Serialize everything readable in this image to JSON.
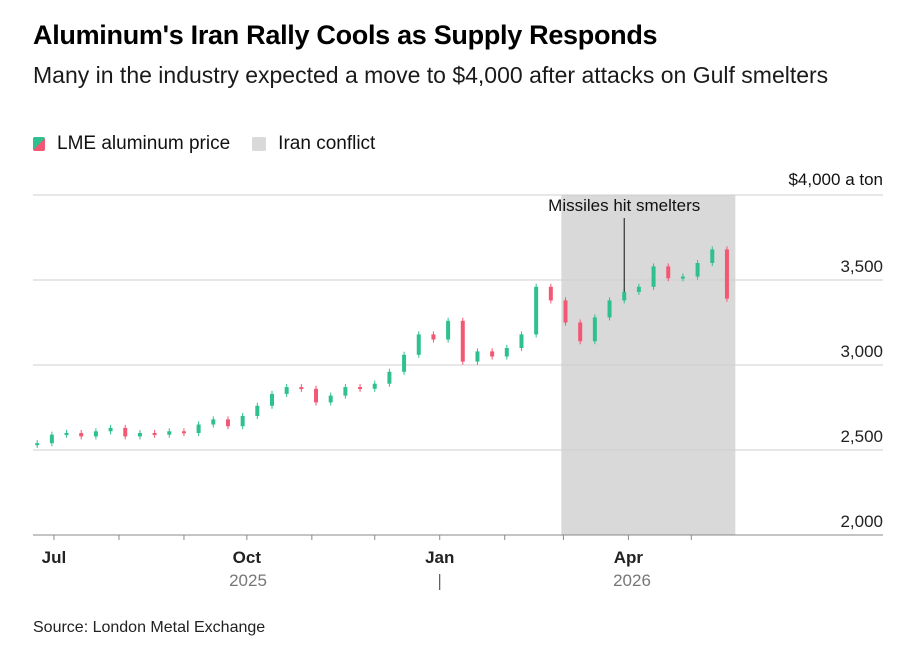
{
  "title": "Aluminum's Iran Rally Cools as Supply Responds",
  "subtitle": "Many in the industry expected a move to $4,000 after attacks on Gulf smelters",
  "legend": {
    "price_label": "LME aluminum price",
    "conflict_label": "Iran conflict"
  },
  "source": "Source: London Metal Exchange",
  "colors": {
    "up": "#2fc08f",
    "down": "#f25873",
    "shade": "#d9d9d9",
    "grid": "#cfcfcf",
    "axis": "#888888"
  },
  "chart_data": {
    "type": "line",
    "y_unit_label": "$4,000 a ton",
    "yticks": [
      "3,500",
      "3,000",
      "2,500",
      "2,000"
    ],
    "ytick_values": [
      3500,
      3000,
      2500,
      2000
    ],
    "ylim": [
      2000,
      4000
    ],
    "xticks": [
      "Jul",
      "Oct",
      "Jan",
      "Apr"
    ],
    "year_labels": [
      "2025",
      "2026"
    ],
    "shaded_region": {
      "label": "Iran conflict",
      "start": "2026-02-28",
      "end": "2026-05-22"
    },
    "annotation": {
      "text": "Missiles hit smelters",
      "date": "2026-03-30",
      "value": 3430
    },
    "series": [
      {
        "name": "LME aluminum price",
        "x": [
          "2025-06-23",
          "2025-06-30",
          "2025-07-07",
          "2025-07-14",
          "2025-07-21",
          "2025-07-28",
          "2025-08-04",
          "2025-08-11",
          "2025-08-18",
          "2025-08-25",
          "2025-09-01",
          "2025-09-08",
          "2025-09-15",
          "2025-09-22",
          "2025-09-29",
          "2025-10-06",
          "2025-10-13",
          "2025-10-20",
          "2025-10-27",
          "2025-11-03",
          "2025-11-10",
          "2025-11-17",
          "2025-11-24",
          "2025-12-01",
          "2025-12-08",
          "2025-12-15",
          "2025-12-22",
          "2025-12-29",
          "2026-01-05",
          "2026-01-12",
          "2026-01-19",
          "2026-01-26",
          "2026-02-02",
          "2026-02-09",
          "2026-02-16",
          "2026-02-23",
          "2026-03-02",
          "2026-03-09",
          "2026-03-16",
          "2026-03-23",
          "2026-03-30",
          "2026-04-06",
          "2026-04-13",
          "2026-04-20",
          "2026-04-27",
          "2026-05-04",
          "2026-05-11",
          "2026-05-18"
        ],
        "values": [
          2540,
          2590,
          2600,
          2580,
          2610,
          2630,
          2580,
          2600,
          2590,
          2610,
          2600,
          2650,
          2680,
          2640,
          2700,
          2760,
          2830,
          2870,
          2860,
          2780,
          2820,
          2870,
          2860,
          2890,
          2960,
          3060,
          3180,
          3150,
          3260,
          3020,
          3080,
          3050,
          3100,
          3180,
          3460,
          3380,
          3250,
          3140,
          3280,
          3380,
          3430,
          3460,
          3580,
          3510,
          3520,
          3600,
          3680,
          3390
        ]
      }
    ]
  }
}
